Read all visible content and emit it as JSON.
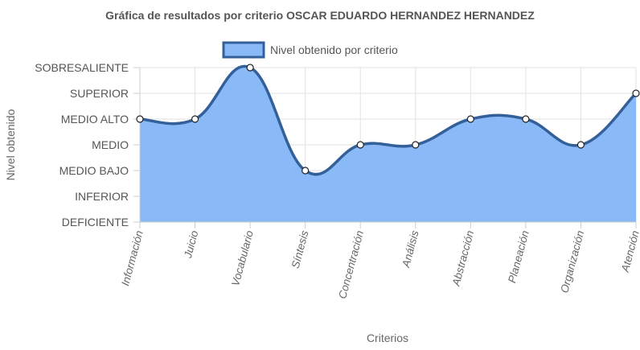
{
  "chart_data": {
    "type": "area",
    "title": "Gráfica de resultados por criterio OSCAR EDUARDO HERNANDEZ HERNANDEZ",
    "xlabel": "Criterios",
    "ylabel": "Nivel obtenido",
    "levels": [
      "DEFICIENTE",
      "INFERIOR",
      "MEDIO BAJO",
      "MEDIO",
      "MEDIO ALTO",
      "SUPERIOR",
      "SOBRESALIENTE"
    ],
    "categories": [
      "Información",
      "Juicio",
      "Vocabulario",
      "Síntesis",
      "Concentración",
      "Análisis",
      "Abstracción",
      "Planeación",
      "Organización",
      "Atención"
    ],
    "series": [
      {
        "name": "Nivel obtenido por criterio",
        "values": [
          4,
          4,
          6,
          2,
          3,
          3,
          4,
          4,
          3,
          5
        ],
        "labels": [
          "MEDIO ALTO",
          "MEDIO ALTO",
          "SOBRESALIENTE",
          "MEDIO BAJO",
          "MEDIO",
          "MEDIO",
          "MEDIO ALTO",
          "MEDIO ALTO",
          "MEDIO",
          "SUPERIOR"
        ]
      }
    ],
    "ylim": [
      0,
      6
    ],
    "grid": true,
    "legend": "top-center",
    "colors": {
      "fill": "#8ab9f7",
      "line": "#34609a",
      "point_fill": "#ffffff",
      "point_stroke": "#222222"
    }
  }
}
